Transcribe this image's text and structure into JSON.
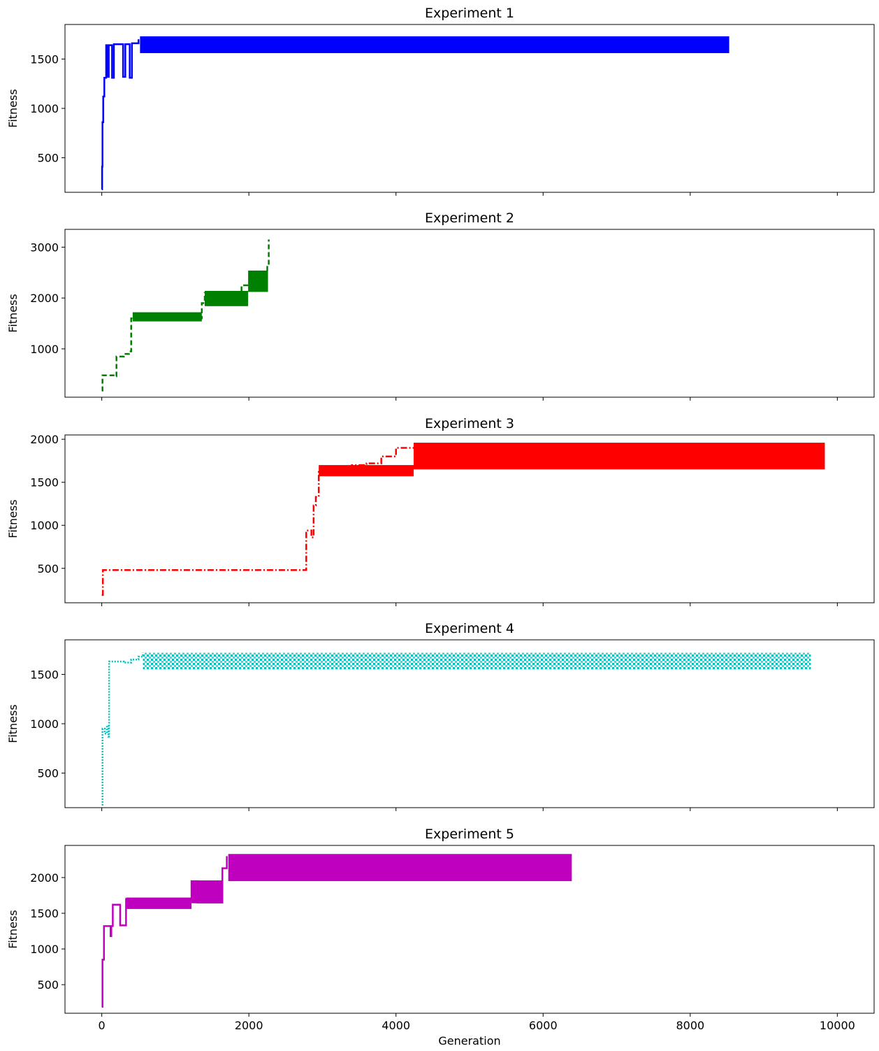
{
  "chart_data": [
    {
      "type": "line",
      "title": "Experiment 1",
      "ylabel": "Fitness",
      "xlabel": "",
      "color": "#0000ff",
      "line_style": "solid",
      "xlim": [
        -500,
        10500
      ],
      "ylim": [
        150,
        1850
      ],
      "xticks": [
        0,
        2000,
        4000,
        6000,
        8000,
        10000
      ],
      "xtick_labels": [
        "0",
        "2000",
        "4000",
        "6000",
        "8000",
        "10000"
      ],
      "show_xtick_labels": false,
      "yticks": [
        500,
        1000,
        1500
      ],
      "ytick_labels": [
        "500",
        "1000",
        "1500"
      ],
      "steps": [
        [
          0,
          180
        ],
        [
          5,
          410
        ],
        [
          10,
          860
        ],
        [
          20,
          1120
        ],
        [
          35,
          1310
        ],
        [
          60,
          1640
        ],
        [
          80,
          1320
        ],
        [
          95,
          1640
        ],
        [
          140,
          1310
        ],
        [
          165,
          1650
        ],
        [
          290,
          1320
        ],
        [
          320,
          1650
        ],
        [
          380,
          1310
        ],
        [
          410,
          1660
        ],
        [
          500,
          1700
        ]
      ],
      "band": {
        "x_start": 520,
        "x_end": 8530,
        "y_low": 1560,
        "y_high": 1730
      }
    },
    {
      "type": "line",
      "title": "Experiment 2",
      "ylabel": "Fitness",
      "xlabel": "",
      "color": "#008000",
      "line_style": "dashed",
      "xlim": [
        -500,
        10500
      ],
      "ylim": [
        50,
        3350
      ],
      "xticks": [
        0,
        2000,
        4000,
        6000,
        8000,
        10000
      ],
      "xtick_labels": [
        "0",
        "2000",
        "4000",
        "6000",
        "8000",
        "10000"
      ],
      "show_xtick_labels": false,
      "yticks": [
        1000,
        2000,
        3000
      ],
      "ytick_labels": [
        "1000",
        "2000",
        "3000"
      ],
      "steps": [
        [
          0,
          180
        ],
        [
          10,
          480
        ],
        [
          180,
          460
        ],
        [
          200,
          850
        ],
        [
          300,
          900
        ],
        [
          370,
          950
        ],
        [
          400,
          1600
        ],
        [
          700,
          1650
        ],
        [
          1000,
          1650
        ],
        [
          1350,
          1600
        ],
        [
          1360,
          1900
        ],
        [
          1400,
          2100
        ],
        [
          1800,
          2050
        ],
        [
          1850,
          1950
        ],
        [
          1900,
          2250
        ],
        [
          2050,
          2400
        ],
        [
          2150,
          2500
        ],
        [
          2250,
          2650
        ],
        [
          2270,
          3150
        ]
      ],
      "band": {
        "x_start": 420,
        "x_end": 1360,
        "y_low": 1540,
        "y_high": 1720
      },
      "band2": {
        "x_start": 1400,
        "x_end": 1990,
        "y_low": 1840,
        "y_high": 2140
      },
      "band3": {
        "x_start": 1990,
        "x_end": 2260,
        "y_low": 2120,
        "y_high": 2540
      }
    },
    {
      "type": "line",
      "title": "Experiment 3",
      "ylabel": "Fitness",
      "xlabel": "",
      "color": "#ff0000",
      "line_style": "dashdot",
      "xlim": [
        -500,
        10500
      ],
      "ylim": [
        100,
        2050
      ],
      "xticks": [
        0,
        2000,
        4000,
        6000,
        8000,
        10000
      ],
      "xtick_labels": [
        "0",
        "2000",
        "4000",
        "6000",
        "8000",
        "10000"
      ],
      "show_xtick_labels": false,
      "yticks": [
        500,
        1000,
        1500,
        2000
      ],
      "ytick_labels": [
        "500",
        "1000",
        "1500",
        "2000"
      ],
      "steps": [
        [
          0,
          190
        ],
        [
          15,
          480
        ],
        [
          2760,
          480
        ],
        [
          2780,
          940
        ],
        [
          2850,
          860
        ],
        [
          2880,
          1230
        ],
        [
          2910,
          1330
        ],
        [
          2950,
          1620
        ],
        [
          3200,
          1600
        ],
        [
          3400,
          1700
        ],
        [
          3600,
          1720
        ],
        [
          3800,
          1800
        ],
        [
          4000,
          1900
        ],
        [
          4300,
          1950
        ]
      ],
      "band": {
        "x_start": 4240,
        "x_end": 9830,
        "y_low": 1650,
        "y_high": 1960
      },
      "band2": {
        "x_start": 2950,
        "x_end": 4240,
        "y_low": 1570,
        "y_high": 1700
      }
    },
    {
      "type": "line",
      "title": "Experiment 4",
      "ylabel": "Fitness",
      "xlabel": "",
      "color": "#00bfbf",
      "line_style": "dotted",
      "xlim": [
        -500,
        10500
      ],
      "ylim": [
        150,
        1850
      ],
      "xticks": [
        0,
        2000,
        4000,
        6000,
        8000,
        10000
      ],
      "xtick_labels": [
        "0",
        "2000",
        "4000",
        "6000",
        "8000",
        "10000"
      ],
      "show_xtick_labels": false,
      "yticks": [
        500,
        1000,
        1500
      ],
      "ytick_labels": [
        "500",
        "1000",
        "1500"
      ],
      "steps": [
        [
          0,
          180
        ],
        [
          10,
          950
        ],
        [
          40,
          900
        ],
        [
          70,
          980
        ],
        [
          90,
          870
        ],
        [
          100,
          1630
        ],
        [
          300,
          1620
        ],
        [
          400,
          1650
        ],
        [
          500,
          1680
        ],
        [
          560,
          1720
        ]
      ],
      "band": {
        "x_start": 560,
        "x_end": 9640,
        "y_low": 1550,
        "y_high": 1720
      }
    },
    {
      "type": "line",
      "title": "Experiment 5",
      "ylabel": "Fitness",
      "xlabel": "Generation",
      "color": "#bf00bf",
      "line_style": "solid",
      "xlim": [
        -500,
        10500
      ],
      "ylim": [
        100,
        2450
      ],
      "xticks": [
        0,
        2000,
        4000,
        6000,
        8000,
        10000
      ],
      "xtick_labels": [
        "0",
        "2000",
        "4000",
        "6000",
        "8000",
        "10000"
      ],
      "show_xtick_labels": true,
      "yticks": [
        500,
        1000,
        1500,
        2000
      ],
      "ytick_labels": [
        "500",
        "1000",
        "1500",
        "2000"
      ],
      "steps": [
        [
          0,
          190
        ],
        [
          10,
          850
        ],
        [
          30,
          1320
        ],
        [
          120,
          1180
        ],
        [
          130,
          1320
        ],
        [
          150,
          1620
        ],
        [
          250,
          1330
        ],
        [
          330,
          1700
        ],
        [
          1220,
          1950
        ],
        [
          1300,
          1650
        ],
        [
          1640,
          2130
        ],
        [
          1700,
          2300
        ]
      ],
      "band": {
        "x_start": 1720,
        "x_end": 6390,
        "y_low": 1950,
        "y_high": 2330
      },
      "band2": {
        "x_start": 330,
        "x_end": 1220,
        "y_low": 1560,
        "y_high": 1720
      },
      "band3": {
        "x_start": 1220,
        "x_end": 1640,
        "y_low": 1640,
        "y_high": 1960
      }
    }
  ]
}
